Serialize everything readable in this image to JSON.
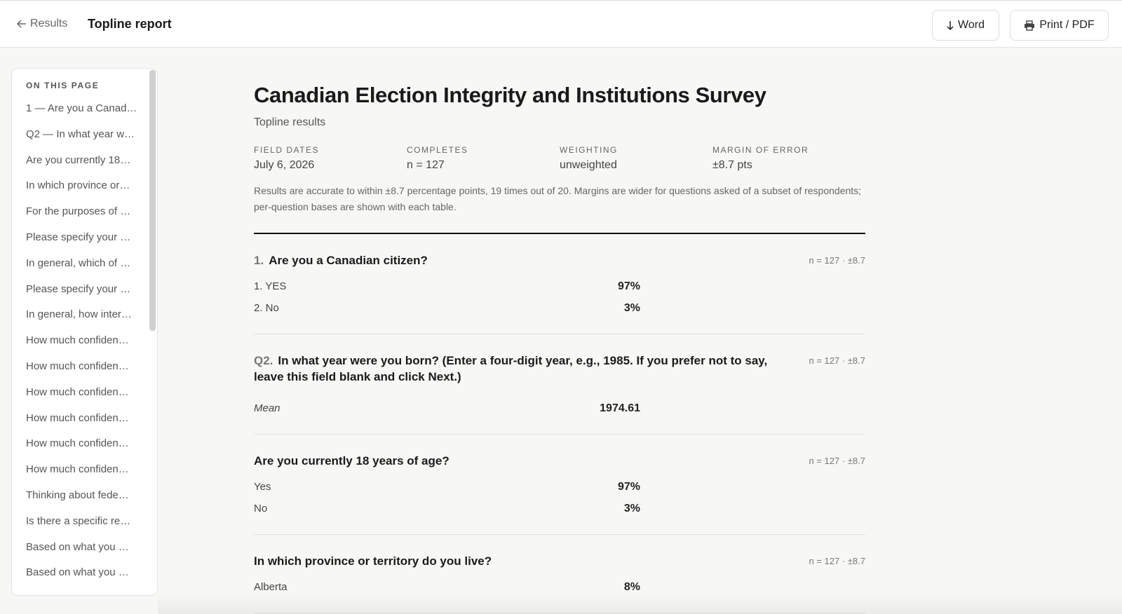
{
  "header": {
    "back": "Results",
    "title": "Topline report",
    "buttons": [
      "Word",
      "Print / PDF"
    ]
  },
  "sidebar": {
    "heading": "ON THIS PAGE",
    "items": [
      "1 — Are you a Canad…",
      "Q2 — In what year w…",
      "Are you currently 18…",
      "In which province or…",
      "For the purposes of …",
      "Please specify your …",
      "In general, which of …",
      "Please specify your …",
      "In general, how inter…",
      "How much confiden…",
      "How much confiden…",
      "How much confiden…",
      "How much confiden…",
      "How much confiden…",
      "How much confiden…",
      "Thinking about fede…",
      "Is there a specific re…",
      "Based on what you …",
      "Based on what you …"
    ]
  },
  "report": {
    "title": "Canadian Election Integrity and Institutions Survey",
    "subtitle": "Topline results",
    "meta": [
      {
        "label": "FIELD DATES",
        "value": "July 6, 2026"
      },
      {
        "label": "COMPLETES",
        "value": "n = 127"
      },
      {
        "label": "WEIGHTING",
        "value": "unweighted"
      },
      {
        "label": "MARGIN OF ERROR",
        "value": "±8.7 pts"
      }
    ],
    "note": "Results are accurate to within ±8.7 percentage points, 19 times out of 20. Margins are wider for questions asked of a subset of respondents; per-question bases are shown with each table.",
    "questions": [
      {
        "number": "1.",
        "text": "Are you a Canadian citizen?",
        "base": "n = 127 · ±8.7",
        "rows": [
          {
            "label": "1. YES",
            "value": "97%"
          },
          {
            "label": "2. No",
            "value": "3%"
          }
        ]
      },
      {
        "number": "Q2.",
        "text": "In what year were you born? (Enter a four-digit year, e.g., 1985. If you prefer not to say, leave this field blank and click Next.)",
        "base": "n = 127 · ±8.7",
        "rows": [
          {
            "label": "Mean",
            "value": "1974.61",
            "italic": true
          }
        ]
      },
      {
        "text": "Are you currently 18 years of age?",
        "base": "n = 127 · ±8.7",
        "rows": [
          {
            "label": "Yes",
            "value": "97%"
          },
          {
            "label": "No",
            "value": "3%"
          }
        ]
      },
      {
        "text": "In which province or territory do you live?",
        "base": "n = 127 · ±8.7",
        "rows": [
          {
            "label": "Alberta",
            "value": "8%"
          }
        ]
      }
    ]
  }
}
